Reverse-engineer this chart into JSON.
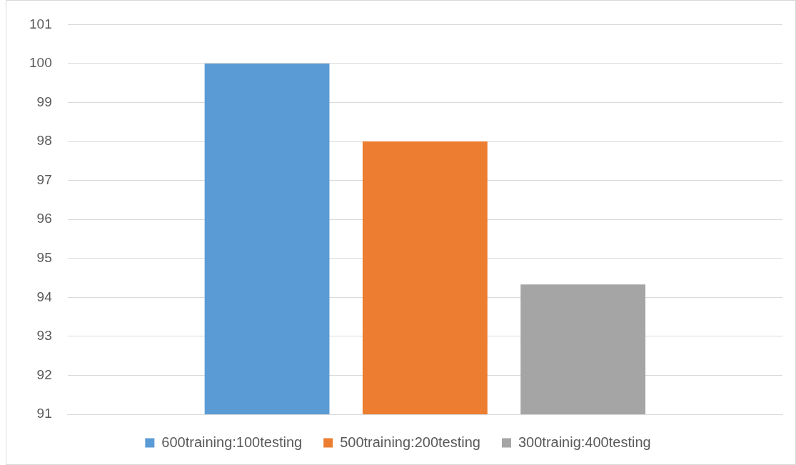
{
  "chart_data": {
    "type": "bar",
    "categories": [
      null
    ],
    "series": [
      {
        "name": "600training:100testing",
        "color": "#5b9bd5",
        "values": [
          100
        ]
      },
      {
        "name": "500training:200testing",
        "color": "#ed7d31",
        "values": [
          98
        ]
      },
      {
        "name": "300trainig:400testing",
        "color": "#a5a5a5",
        "values": [
          94.33
        ]
      }
    ],
    "ylim": [
      91,
      101
    ],
    "yticks": [
      91,
      92,
      93,
      94,
      95,
      96,
      97,
      98,
      99,
      100,
      101
    ],
    "grid": "y",
    "legend": "bottom"
  }
}
